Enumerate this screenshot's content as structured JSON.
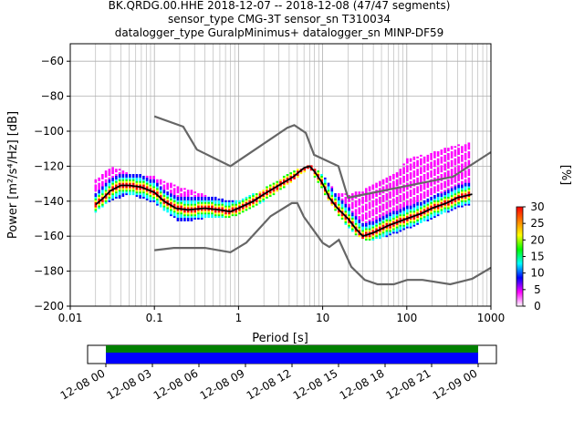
{
  "header": {
    "line1": "BK.QRDG.00.HHE   2018-12-07 -- 2018-12-08  (47/47 segments)",
    "line2": "sensor_type CMG-3T sensor_sn T310034",
    "line3": "datalogger_type GuralpMinimus+ datalogger_sn MINP-DF59"
  },
  "colors": {
    "noise_model": "#666666",
    "mode_line": "#000000",
    "coverage_band_top": "#008000",
    "coverage_band_bottom": "#0000ff",
    "grid": "#b0b0b0"
  },
  "chart_data": [
    {
      "type": "heatmap",
      "title": "",
      "xlabel": "Period [s]",
      "ylabel": "Power [m²/s⁴/Hz] [dB]",
      "x_scale": "log",
      "xlim": [
        0.01,
        1000
      ],
      "ylim": [
        -200,
        -50
      ],
      "xticks": [
        0.01,
        0.1,
        1,
        10,
        100,
        1000
      ],
      "xtick_labels": [
        "0.01",
        "0.1",
        "1",
        "10",
        "100",
        "1000"
      ],
      "yticks": [
        -200,
        -180,
        -160,
        -140,
        -120,
        -100,
        -80,
        -60
      ],
      "ytick_labels": [
        "−200",
        "−180",
        "−160",
        "−140",
        "−120",
        "−100",
        "−80",
        "−60"
      ],
      "grid": true,
      "colorbar": {
        "label": "[%]",
        "range": [
          0,
          30
        ],
        "ticks": [
          0,
          5,
          10,
          15,
          20,
          25,
          30
        ],
        "tick_labels": [
          "0",
          "5",
          "10",
          "15",
          "20",
          "25",
          "30"
        ],
        "colormap": [
          "#ffffff",
          "#ff00ff",
          "#0000ff",
          "#00ffff",
          "#00ff00",
          "#ffff00",
          "#ff8000",
          "#ff0000"
        ]
      },
      "psd_mode": [
        [
          0.02,
          -142
        ],
        [
          0.025,
          -138
        ],
        [
          0.03,
          -134
        ],
        [
          0.04,
          -131
        ],
        [
          0.05,
          -131
        ],
        [
          0.07,
          -132
        ],
        [
          0.1,
          -135
        ],
        [
          0.13,
          -140
        ],
        [
          0.18,
          -144
        ],
        [
          0.25,
          -145
        ],
        [
          0.4,
          -144
        ],
        [
          0.6,
          -145
        ],
        [
          0.8,
          -146
        ],
        [
          1.0,
          -144
        ],
        [
          1.5,
          -140
        ],
        [
          2.0,
          -136
        ],
        [
          3.0,
          -131
        ],
        [
          4.5,
          -126
        ],
        [
          6.0,
          -121
        ],
        [
          7.0,
          -120
        ],
        [
          8.0,
          -123
        ],
        [
          10,
          -130
        ],
        [
          12,
          -138
        ],
        [
          15,
          -144
        ],
        [
          20,
          -150
        ],
        [
          25,
          -156
        ],
        [
          30,
          -160
        ],
        [
          40,
          -158
        ],
        [
          60,
          -154
        ],
        [
          100,
          -150
        ],
        [
          150,
          -147
        ],
        [
          200,
          -144
        ],
        [
          300,
          -141
        ],
        [
          400,
          -138
        ],
        [
          600,
          -136
        ]
      ],
      "psd_spread_low": [
        [
          0.02,
          -146
        ],
        [
          0.03,
          -140
        ],
        [
          0.05,
          -136
        ],
        [
          0.1,
          -141
        ],
        [
          0.2,
          -152
        ],
        [
          0.4,
          -150
        ],
        [
          0.8,
          -149
        ],
        [
          1.0,
          -148
        ],
        [
          2.0,
          -140
        ],
        [
          4.0,
          -130
        ],
        [
          7.0,
          -121
        ],
        [
          10,
          -134
        ],
        [
          15,
          -148
        ],
        [
          25,
          -160
        ],
        [
          35,
          -163
        ],
        [
          60,
          -160
        ],
        [
          100,
          -156
        ],
        [
          200,
          -150
        ],
        [
          400,
          -144
        ],
        [
          700,
          -141
        ]
      ],
      "psd_spread_high": [
        [
          0.02,
          -128
        ],
        [
          0.03,
          -120
        ],
        [
          0.05,
          -124
        ],
        [
          0.1,
          -126
        ],
        [
          0.2,
          -132
        ],
        [
          0.4,
          -136
        ],
        [
          0.8,
          -140
        ],
        [
          1.0,
          -140
        ],
        [
          2.0,
          -133
        ],
        [
          4.0,
          -124
        ],
        [
          7.0,
          -119
        ],
        [
          10,
          -125
        ],
        [
          15,
          -136
        ],
        [
          30,
          -134
        ],
        [
          50,
          -128
        ],
        [
          80,
          -123
        ],
        [
          100,
          -116
        ],
        [
          200,
          -112
        ],
        [
          400,
          -108
        ],
        [
          700,
          -105
        ]
      ],
      "nhnm": [
        [
          0.1,
          -91.5
        ],
        [
          0.22,
          -97.4
        ],
        [
          0.32,
          -110.5
        ],
        [
          0.8,
          -120
        ],
        [
          3.8,
          -98
        ],
        [
          4.6,
          -96.5
        ],
        [
          6.3,
          -101
        ],
        [
          7.9,
          -113.5
        ],
        [
          15.4,
          -120
        ],
        [
          20,
          -138
        ],
        [
          354.8,
          -126
        ],
        [
          1000,
          -112
        ]
      ],
      "nlnm": [
        [
          0.1,
          -168
        ],
        [
          0.17,
          -166.7
        ],
        [
          0.4,
          -166.7
        ],
        [
          0.8,
          -169.2
        ],
        [
          1.24,
          -163.7
        ],
        [
          2.4,
          -148.6
        ],
        [
          4.3,
          -141.1
        ],
        [
          5.0,
          -141.1
        ],
        [
          6.0,
          -149
        ],
        [
          10,
          -163.8
        ],
        [
          12,
          -166.2
        ],
        [
          15.6,
          -162.1
        ],
        [
          21.9,
          -177.5
        ],
        [
          31.6,
          -185
        ],
        [
          45,
          -187.5
        ],
        [
          70,
          -187.5
        ],
        [
          101,
          -185
        ],
        [
          154,
          -185
        ],
        [
          328,
          -187.5
        ],
        [
          600,
          -184.4
        ],
        [
          1000,
          -178
        ]
      ]
    },
    {
      "type": "bar",
      "title": "",
      "x_range": [
        "12-08 00",
        "12-09 00"
      ],
      "xtick_labels": [
        "12-08 00",
        "12-08 03",
        "12-08 06",
        "12-08 09",
        "12-08 12",
        "12-08 15",
        "12-08 18",
        "12-08 21",
        "12-09 00"
      ],
      "bands": [
        {
          "color": "#008000",
          "start": "12-08 00",
          "end": "12-09 00"
        },
        {
          "color": "#0000ff",
          "start": "12-08 00",
          "end": "12-09 00"
        }
      ]
    }
  ]
}
